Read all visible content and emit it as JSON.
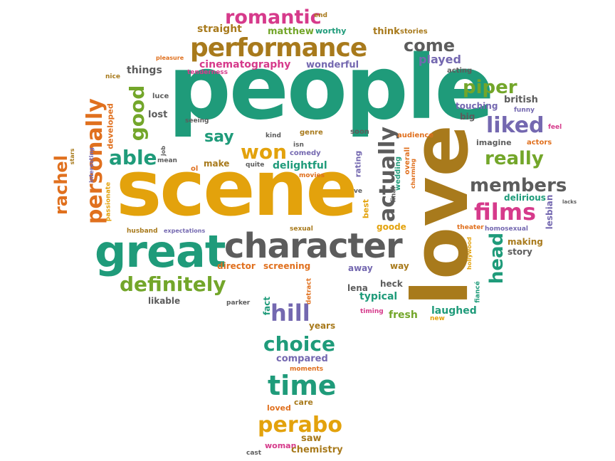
{
  "colors": {
    "teal": "#1f9b7a",
    "gold": "#e3a20c",
    "brown": "#a87a1c",
    "gray": "#5c5c5c",
    "purple": "#7468b0",
    "magenta": "#d63a8b",
    "orange": "#e0701e",
    "green": "#73a62a"
  },
  "words": [
    {
      "text": "people",
      "color": "teal"
    },
    {
      "text": "scene",
      "color": "gold"
    },
    {
      "text": "love",
      "color": "brown"
    },
    {
      "text": "great",
      "color": "teal"
    },
    {
      "text": "character",
      "color": "gray"
    },
    {
      "text": "performance",
      "color": "brown"
    },
    {
      "text": "personally",
      "color": "orange"
    },
    {
      "text": "romantic",
      "color": "magenta"
    },
    {
      "text": "definitely",
      "color": "green"
    },
    {
      "text": "time",
      "color": "teal"
    },
    {
      "text": "perabo",
      "color": "gold"
    },
    {
      "text": "choice",
      "color": "teal"
    },
    {
      "text": "films",
      "color": "magenta"
    },
    {
      "text": "liked",
      "color": "purple"
    },
    {
      "text": "members",
      "color": "gray"
    },
    {
      "text": "really",
      "color": "green"
    },
    {
      "text": "piper",
      "color": "green"
    },
    {
      "text": "actually",
      "color": "gray"
    },
    {
      "text": "good",
      "color": "green"
    },
    {
      "text": "able",
      "color": "teal"
    },
    {
      "text": "won",
      "color": "gold"
    },
    {
      "text": "say",
      "color": "teal"
    },
    {
      "text": "hill",
      "color": "purple"
    },
    {
      "text": "head",
      "color": "teal"
    },
    {
      "text": "rachel",
      "color": "orange"
    },
    {
      "text": "come",
      "color": "gray"
    },
    {
      "text": "cinematography",
      "color": "magenta"
    },
    {
      "text": "straight",
      "color": "brown"
    },
    {
      "text": "matthew",
      "color": "green"
    },
    {
      "text": "end",
      "color": "brown"
    },
    {
      "text": "worthy",
      "color": "teal"
    },
    {
      "text": "think",
      "color": "brown"
    },
    {
      "text": "stories",
      "color": "brown"
    },
    {
      "text": "played",
      "color": "purple"
    },
    {
      "text": "acting",
      "color": "gray"
    },
    {
      "text": "wonderful",
      "color": "purple"
    },
    {
      "text": "things",
      "color": "gray"
    },
    {
      "text": "tenderness",
      "color": "magenta"
    },
    {
      "text": "pleasure",
      "color": "orange"
    },
    {
      "text": "nice",
      "color": "brown"
    },
    {
      "text": "luce",
      "color": "gray"
    },
    {
      "text": "lost",
      "color": "gray"
    },
    {
      "text": "seeing",
      "color": "gray"
    },
    {
      "text": "developed",
      "color": "orange"
    },
    {
      "text": "stars",
      "color": "brown"
    },
    {
      "text": "interesting",
      "color": "purple"
    },
    {
      "text": "passionate",
      "color": "gold"
    },
    {
      "text": "job",
      "color": "gray"
    },
    {
      "text": "mean",
      "color": "gray"
    },
    {
      "text": "ol",
      "color": "orange"
    },
    {
      "text": "make",
      "color": "brown"
    },
    {
      "text": "quite",
      "color": "gray"
    },
    {
      "text": "kind",
      "color": "gray"
    },
    {
      "text": "genre",
      "color": "brown"
    },
    {
      "text": "isn",
      "color": "gray"
    },
    {
      "text": "comedy",
      "color": "purple"
    },
    {
      "text": "delightful",
      "color": "teal"
    },
    {
      "text": "movies",
      "color": "orange"
    },
    {
      "text": "soon",
      "color": "gray"
    },
    {
      "text": "audience",
      "color": "orange"
    },
    {
      "text": "rating",
      "color": "purple"
    },
    {
      "text": "final",
      "color": "gray"
    },
    {
      "text": "wedding",
      "color": "teal"
    },
    {
      "text": "overall",
      "color": "orange"
    },
    {
      "text": "charming",
      "color": "orange"
    },
    {
      "text": "ve",
      "color": "gray"
    },
    {
      "text": "best",
      "color": "gold"
    },
    {
      "text": "goode",
      "color": "gold"
    },
    {
      "text": "touching",
      "color": "purple"
    },
    {
      "text": "british",
      "color": "gray"
    },
    {
      "text": "funny",
      "color": "purple"
    },
    {
      "text": "big",
      "color": "gray"
    },
    {
      "text": "feel",
      "color": "magenta"
    },
    {
      "text": "imagine",
      "color": "gray"
    },
    {
      "text": "actors",
      "color": "orange"
    },
    {
      "text": "delirious",
      "color": "teal"
    },
    {
      "text": "lesbian",
      "color": "purple"
    },
    {
      "text": "lacks",
      "color": "gray"
    },
    {
      "text": "theater",
      "color": "orange"
    },
    {
      "text": "homosexual",
      "color": "purple"
    },
    {
      "text": "making",
      "color": "brown"
    },
    {
      "text": "story",
      "color": "gray"
    },
    {
      "text": "hollywood",
      "color": "gold"
    },
    {
      "text": "fiancé",
      "color": "teal"
    },
    {
      "text": "husband",
      "color": "brown"
    },
    {
      "text": "expectations",
      "color": "purple"
    },
    {
      "text": "sexual",
      "color": "brown"
    },
    {
      "text": "director",
      "color": "orange"
    },
    {
      "text": "screening",
      "color": "orange"
    },
    {
      "text": "away",
      "color": "purple"
    },
    {
      "text": "way",
      "color": "brown"
    },
    {
      "text": "likable",
      "color": "gray"
    },
    {
      "text": "parker",
      "color": "gray"
    },
    {
      "text": "fact",
      "color": "teal"
    },
    {
      "text": "detract",
      "color": "orange"
    },
    {
      "text": "lena",
      "color": "gray"
    },
    {
      "text": "heck",
      "color": "gray"
    },
    {
      "text": "typical",
      "color": "teal"
    },
    {
      "text": "timing",
      "color": "magenta"
    },
    {
      "text": "fresh",
      "color": "green"
    },
    {
      "text": "laughed",
      "color": "teal"
    },
    {
      "text": "new",
      "color": "gold"
    },
    {
      "text": "years",
      "color": "brown"
    },
    {
      "text": "compared",
      "color": "purple"
    },
    {
      "text": "moments",
      "color": "orange"
    },
    {
      "text": "care",
      "color": "brown"
    },
    {
      "text": "loved",
      "color": "orange"
    },
    {
      "text": "saw",
      "color": "brown"
    },
    {
      "text": "woman",
      "color": "magenta"
    },
    {
      "text": "cast",
      "color": "gray"
    },
    {
      "text": "chemistry",
      "color": "brown"
    }
  ]
}
